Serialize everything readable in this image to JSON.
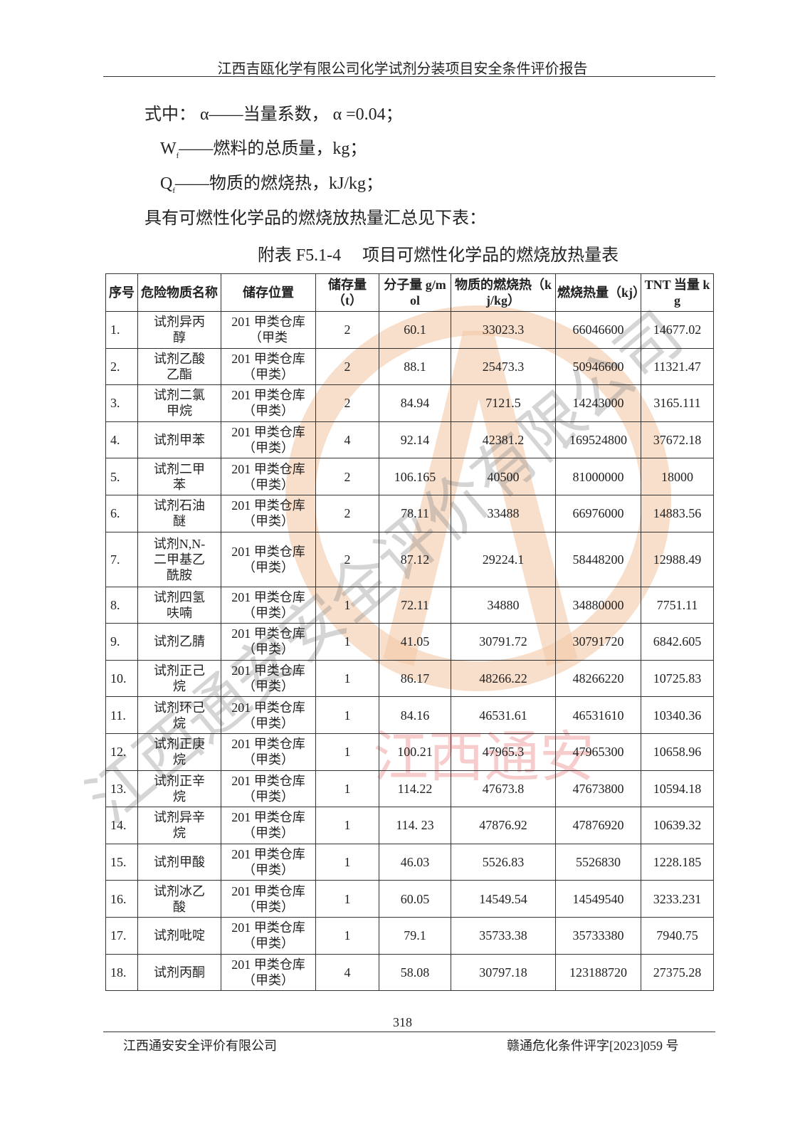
{
  "header": {
    "title": "江西吉瓯化学有限公司化学试剂分装项目安全条件评价报告"
  },
  "body": {
    "line1": "式中： α——当量系数， α =0.04；",
    "line2": {
      "symbol": "W",
      "sub": "f",
      "text": "——燃料的总质量，kg；"
    },
    "line3": {
      "symbol": "Q",
      "sub": "f",
      "text": "——物质的燃烧热，kJ/kg；"
    },
    "line4": "具有可燃性化学品的燃烧放热量汇总见下表："
  },
  "table": {
    "caption": "附表 F5.1-4　 项目可燃性化学品的燃烧放热量表",
    "columns": [
      "序号",
      "危险物质名称",
      "储存位置",
      "储存量（t）",
      "分子量 g/mol",
      "物质的燃烧热（kj/kg）",
      "燃烧热量（kj）",
      "TNT 当量 kg"
    ],
    "rows": [
      [
        "1.",
        "试剂异丙醇",
        "201 甲类仓库（甲类",
        "2",
        "60.1",
        "33023.3",
        "66046600",
        "14677.02"
      ],
      [
        "2.",
        "试剂乙酸乙酯",
        "201 甲类仓库（甲类）",
        "2",
        "88.1",
        "25473.3",
        "50946600",
        "11321.47"
      ],
      [
        "3.",
        "试剂二氯甲烷",
        "201 甲类仓库（甲类）",
        "2",
        "84.94",
        "7121.5",
        "14243000",
        "3165.111"
      ],
      [
        "4.",
        "试剂甲苯",
        "201 甲类仓库（甲类）",
        "4",
        "92.14",
        "42381.2",
        "169524800",
        "37672.18"
      ],
      [
        "5.",
        "试剂二甲苯",
        "201 甲类仓库（甲类）",
        "2",
        "106.165",
        "40500",
        "81000000",
        "18000"
      ],
      [
        "6.",
        "试剂石油醚",
        "201 甲类仓库（甲类）",
        "2",
        "78.11",
        "33488",
        "66976000",
        "14883.56"
      ],
      [
        "7.",
        "试剂N,N-二甲基乙酰胺",
        "201 甲类仓库（甲类）",
        "2",
        "87.12",
        "29224.1",
        "58448200",
        "12988.49"
      ],
      [
        "8.",
        "试剂四氢呋喃",
        "201 甲类仓库（甲类）",
        "1",
        "72.11",
        "34880",
        "34880000",
        "7751.11"
      ],
      [
        "9.",
        "试剂乙腈",
        "201 甲类仓库（甲类）",
        "1",
        "41.05",
        "30791.72",
        "30791720",
        "6842.605"
      ],
      [
        "10.",
        "试剂正己烷",
        "201 甲类仓库（甲类）",
        "1",
        "86.17",
        "48266.22",
        "48266220",
        "10725.83"
      ],
      [
        "11.",
        "试剂环己烷",
        "201 甲类仓库（甲类）",
        "1",
        "84.16",
        "46531.61",
        "46531610",
        "10340.36"
      ],
      [
        "12.",
        "试剂正庚烷",
        "201 甲类仓库（甲类）",
        "1",
        "100.21",
        "47965.3",
        "47965300",
        "10658.96"
      ],
      [
        "13.",
        "试剂正辛烷",
        "201 甲类仓库（甲类）",
        "1",
        "114.22",
        "47673.8",
        "47673800",
        "10594.18"
      ],
      [
        "14.",
        "试剂异辛烷",
        "201 甲类仓库（甲类）",
        "1",
        "114. 23",
        "47876.92",
        "47876920",
        "10639.32"
      ],
      [
        "15.",
        "试剂甲酸",
        "201 甲类仓库（甲类）",
        "1",
        "46.03",
        "5526.83",
        "5526830",
        "1228.185"
      ],
      [
        "16.",
        "试剂冰乙酸",
        "201 甲类仓库（甲类）",
        "1",
        "60.05",
        "14549.54",
        "14549540",
        "3233.231"
      ],
      [
        "17.",
        "试剂吡啶",
        "201 甲类仓库（甲类）",
        "1",
        "79.1",
        "35733.38",
        "35733380",
        "7940.75"
      ],
      [
        "18.",
        "试剂丙酮",
        "201 甲类仓库（甲类）",
        "4",
        "58.08",
        "30797.18",
        "123188720",
        "27375.28"
      ]
    ]
  },
  "watermark": {
    "company": "江西通安安全评价有限公司",
    "short": "江西通安"
  },
  "footer": {
    "page": "318",
    "company": "江西通安安全评价有限公司",
    "doc_no": "赣通危化条件评字[2023]059 号"
  }
}
